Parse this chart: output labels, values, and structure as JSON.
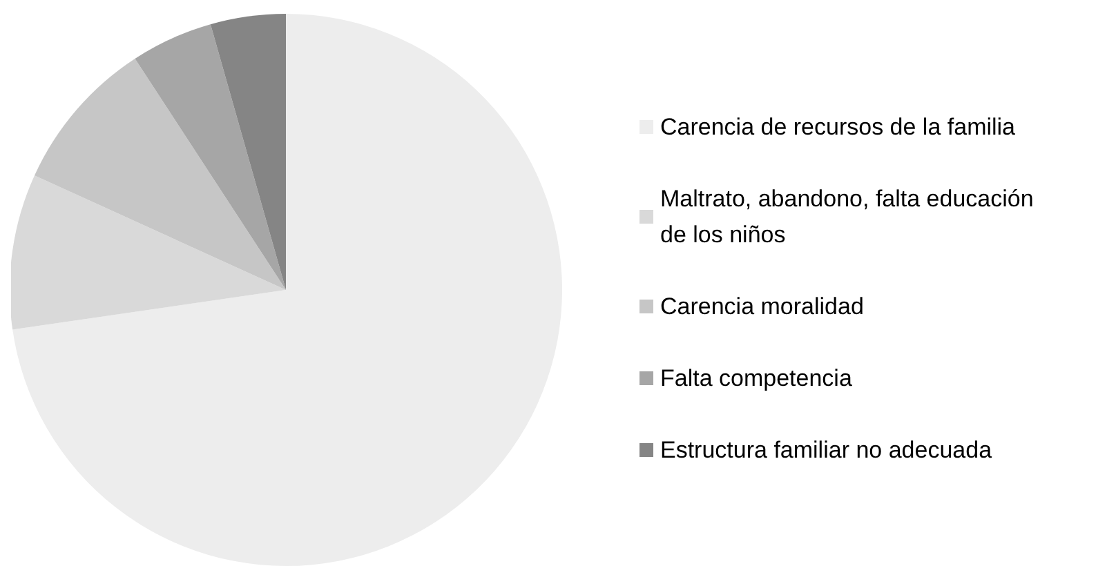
{
  "chart_data": {
    "type": "pie",
    "categories": [
      "Carencia de recursos de la familia",
      "Maltrato, abandono, falta educación de los niños",
      "Carencia moralidad",
      "Falta competencia",
      "Estructura familiar no adecuada"
    ],
    "values": [
      72.7,
      9.1,
      9.0,
      4.8,
      4.4
    ],
    "colors": [
      "#ededed",
      "#d9d9d9",
      "#c6c6c6",
      "#a6a6a6",
      "#858585"
    ],
    "legend": "right"
  }
}
